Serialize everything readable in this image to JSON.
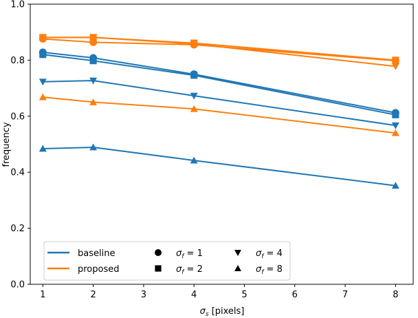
{
  "chart_data": {
    "type": "line",
    "xlabel": "σ_s [pixels]",
    "xlabel_symbol": "σ",
    "xlabel_subscript": "s",
    "xlabel_suffix": " [pixels]",
    "ylabel": "frequency",
    "xlim": [
      0.75,
      8.35
    ],
    "ylim": [
      0.0,
      1.0
    ],
    "x_ticks": [
      1,
      2,
      3,
      4,
      5,
      6,
      7,
      8
    ],
    "y_ticks": [
      0.0,
      0.2,
      0.4,
      0.6,
      0.8,
      1.0
    ],
    "y_tick_labels": [
      "0.0",
      "0.2",
      "0.4",
      "0.6",
      "0.8",
      "1.0"
    ],
    "grid": false,
    "legend_position": "lower-left",
    "methods": [
      {
        "name": "baseline",
        "color": "#1f77b4"
      },
      {
        "name": "proposed",
        "color": "#ff7f0e"
      }
    ],
    "markers": [
      {
        "shape": "circle",
        "sigma_f": "1"
      },
      {
        "shape": "square",
        "sigma_f": "2"
      },
      {
        "shape": "triangle-down",
        "sigma_f": "4"
      },
      {
        "shape": "triangle-up",
        "sigma_f": "8"
      }
    ],
    "series": [
      {
        "method": "baseline",
        "sigma_f": 1,
        "marker": "circle",
        "x": [
          1,
          2,
          4,
          8
        ],
        "y": [
          0.828,
          0.808,
          0.75,
          0.612
        ]
      },
      {
        "method": "baseline",
        "sigma_f": 2,
        "marker": "square",
        "x": [
          1,
          2,
          4,
          8
        ],
        "y": [
          0.82,
          0.798,
          0.746,
          0.605
        ]
      },
      {
        "method": "baseline",
        "sigma_f": 4,
        "marker": "triangle-down",
        "x": [
          1,
          2,
          4,
          8
        ],
        "y": [
          0.723,
          0.727,
          0.673,
          0.567
        ]
      },
      {
        "method": "baseline",
        "sigma_f": 8,
        "marker": "triangle-up",
        "x": [
          1,
          2,
          4,
          8
        ],
        "y": [
          0.484,
          0.489,
          0.442,
          0.352
        ]
      },
      {
        "method": "proposed",
        "sigma_f": 1,
        "marker": "circle",
        "x": [
          1,
          2,
          4,
          8
        ],
        "y": [
          0.876,
          0.864,
          0.855,
          0.798
        ]
      },
      {
        "method": "proposed",
        "sigma_f": 2,
        "marker": "square",
        "x": [
          1,
          2,
          4,
          8
        ],
        "y": [
          0.881,
          0.881,
          0.861,
          0.8
        ]
      },
      {
        "method": "proposed",
        "sigma_f": 4,
        "marker": "triangle-down",
        "x": [
          1,
          2,
          4,
          8
        ],
        "y": [
          0.881,
          0.881,
          0.858,
          0.778
        ]
      },
      {
        "method": "proposed",
        "sigma_f": 8,
        "marker": "triangle-up",
        "x": [
          1,
          2,
          4,
          8
        ],
        "y": [
          0.668,
          0.65,
          0.626,
          0.54
        ]
      }
    ]
  }
}
